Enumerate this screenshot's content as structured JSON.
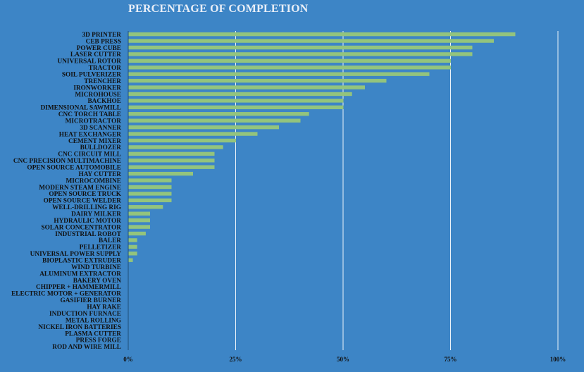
{
  "chart_data": {
    "type": "bar",
    "orientation": "horizontal",
    "title": "PERCENTAGE OF COMPLETION",
    "xlabel": "",
    "ylabel": "",
    "xlim": [
      0,
      100
    ],
    "x_ticks": [
      "0%",
      "25%",
      "50%",
      "75%",
      "100%"
    ],
    "grid": true,
    "colors": {
      "background": "#3d85c6",
      "bar": "#93c47d",
      "grid": "#ffffff",
      "title": "#e8eef7",
      "text": "#111111"
    },
    "categories": [
      "3D PRINTER",
      "CEB PRESS",
      "POWER CUBE",
      "LASER CUTTER",
      "UNIVERSAL ROTOR",
      "TRACTOR",
      "SOIL PULVERIZER",
      "TRENCHER",
      "IRONWORKER",
      "MICROHOUSE",
      "BACKHOE",
      "DIMENSIONAL SAWMILL",
      "CNC TORCH TABLE",
      "MICROTRACTOR",
      "3D SCANNER",
      "HEAT EXCHANGER",
      "CEMENT MIXER",
      "BULLDOZER",
      "CNC CIRCUIT MILL",
      "CNC PRECISION MULTIMACHINE",
      "OPEN SOURCE AUTOMOBILE",
      "HAY CUTTER",
      "MICROCOMBINE",
      "MODERN STEAM ENGINE",
      "OPEN SOURCE TRUCK",
      "OPEN SOURCE WELDER",
      "WELL-DRILLING RIG",
      "DAIRY MILKER",
      "HYDRAULIC MOTOR",
      "SOLAR CONCENTRATOR",
      "INDUSTRIAL ROBOT",
      "BALER",
      "PELLETIZER",
      "UNIVERSAL POWER SUPPLY",
      "BIOPLASTIC EXTRUDER",
      "WIND TURBINE",
      "ALUMINUM EXTRACTOR",
      "BAKERY OVEN",
      "CHIPPER + HAMMERMILL",
      "ELECTRIC MOTOR + GENERATOR",
      "GASIFIER BURNER",
      "HAY RAKE",
      "INDUCTION FURNACE",
      "METAL ROLLING",
      "NICKEL IRON BATTERIES",
      "PLASMA CUTTER",
      "PRESS FORGE",
      "ROD AND WIRE MILL"
    ],
    "values": [
      90,
      85,
      80,
      80,
      75,
      75,
      70,
      60,
      55,
      52,
      50,
      50,
      42,
      40,
      35,
      30,
      25,
      22,
      20,
      20,
      20,
      15,
      10,
      10,
      10,
      10,
      8,
      5,
      5,
      5,
      4,
      2,
      2,
      2,
      1,
      0,
      0,
      0,
      0,
      0,
      0,
      0,
      0,
      0,
      0,
      0,
      0,
      0
    ]
  }
}
